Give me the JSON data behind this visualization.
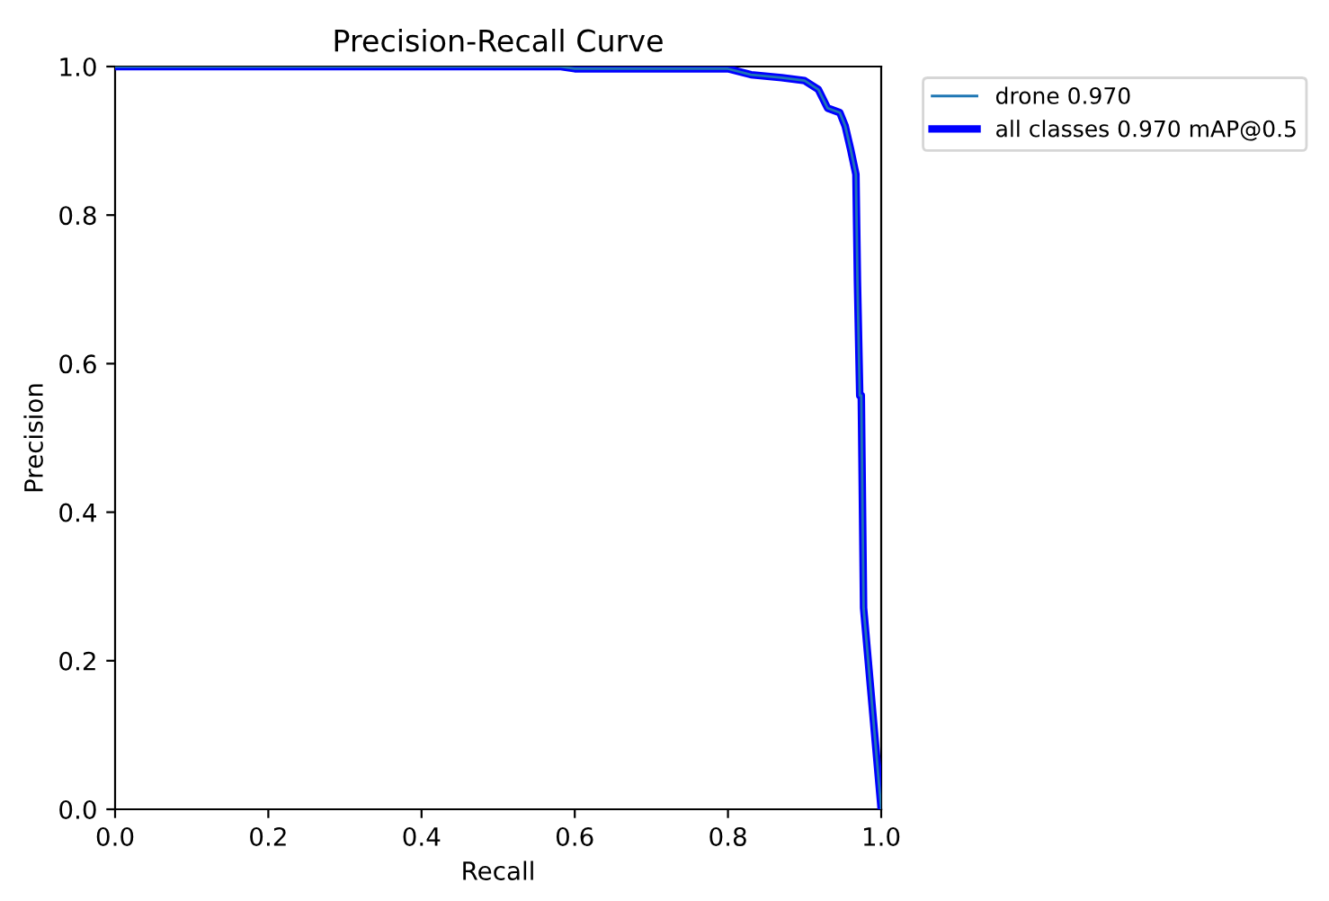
{
  "chart_data": {
    "type": "line",
    "title": "Precision-Recall Curve",
    "xlabel": "Recall",
    "ylabel": "Precision",
    "xlim": [
      0.0,
      1.0
    ],
    "ylim": [
      0.0,
      1.0
    ],
    "xticks": [
      {
        "value": 0,
        "label": "0.0"
      },
      0.2,
      0.4,
      0.6,
      0.8,
      {
        "value": 1,
        "label": "1.0"
      }
    ],
    "yticks": [
      {
        "value": 0,
        "label": "0.0"
      },
      0.2,
      0.4,
      0.6,
      0.8,
      {
        "value": 1,
        "label": "1.0"
      }
    ],
    "x": [
      0.0,
      0.58,
      0.6,
      0.8,
      0.83,
      0.87,
      0.9,
      0.918,
      0.93,
      0.946,
      0.953,
      0.96,
      0.967,
      0.969,
      0.972,
      0.974,
      0.977,
      1.0
    ],
    "legend": "top right",
    "grid": false,
    "series": [
      {
        "name": "drone 0.970",
        "color": "#1f77b4",
        "values": [
          1.0,
          1.0,
          0.997,
          0.997,
          0.989,
          0.985,
          0.981,
          0.969,
          0.944,
          0.938,
          0.92,
          0.889,
          0.855,
          0.71,
          0.557,
          0.557,
          0.271,
          0.0
        ]
      },
      {
        "name": "all classes 0.970 mAP@0.5",
        "color": "#0000ff",
        "values": [
          1.0,
          1.0,
          0.997,
          0.997,
          0.989,
          0.985,
          0.981,
          0.969,
          0.944,
          0.938,
          0.92,
          0.889,
          0.855,
          0.71,
          0.557,
          0.557,
          0.271,
          0.0
        ]
      }
    ]
  }
}
